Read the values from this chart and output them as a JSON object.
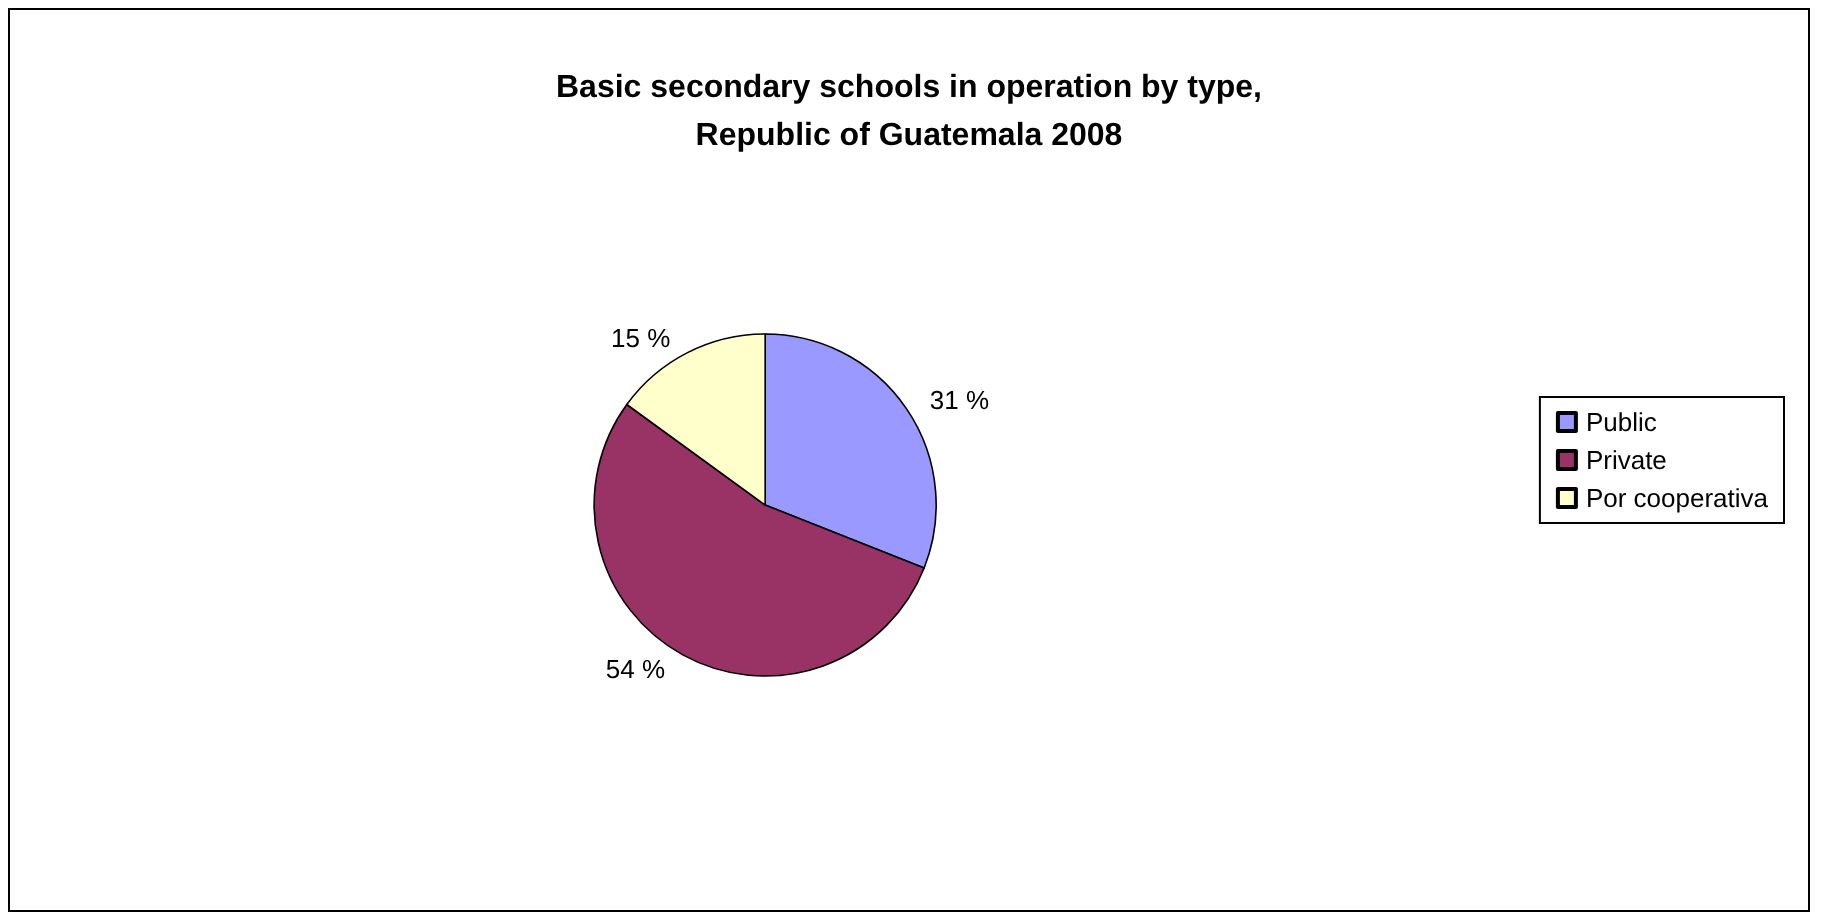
{
  "chart_data": {
    "type": "pie",
    "title": "Basic secondary schools in operation by type,\nRepublic of Guatemala 2008",
    "categories": [
      "Public",
      "Private",
      "Por cooperativa"
    ],
    "values": [
      31,
      54,
      15
    ],
    "value_labels": [
      "31 %",
      "54 %",
      "15 %"
    ],
    "colors": [
      "#9999ff",
      "#993366",
      "#ffffcc"
    ],
    "legend": "right"
  }
}
